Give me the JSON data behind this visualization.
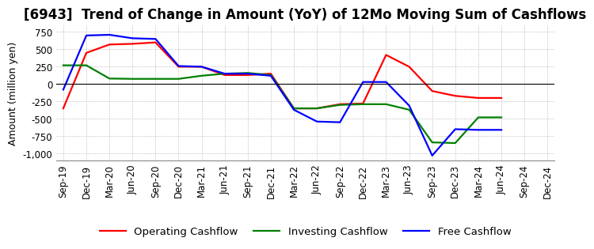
{
  "title": "[6943]  Trend of Change in Amount (YoY) of 12Mo Moving Sum of Cashflows",
  "ylabel": "Amount (million yen)",
  "x_labels": [
    "Sep-19",
    "Dec-19",
    "Mar-20",
    "Jun-20",
    "Sep-20",
    "Dec-20",
    "Mar-21",
    "Jun-21",
    "Sep-21",
    "Dec-21",
    "Mar-22",
    "Jun-22",
    "Sep-22",
    "Dec-22",
    "Mar-23",
    "Jun-23",
    "Sep-23",
    "Dec-23",
    "Mar-24",
    "Jun-24",
    "Sep-24",
    "Dec-24"
  ],
  "operating": [
    -350,
    450,
    570,
    580,
    600,
    250,
    250,
    130,
    130,
    150,
    -350,
    -350,
    -290,
    -280,
    420,
    250,
    -100,
    -170,
    -200,
    -200,
    null,
    null
  ],
  "investing": [
    270,
    270,
    80,
    75,
    75,
    75,
    120,
    150,
    160,
    130,
    -350,
    -350,
    -300,
    -290,
    -290,
    -370,
    -840,
    -850,
    -480,
    -480,
    null,
    null
  ],
  "free": [
    -80,
    700,
    710,
    660,
    650,
    260,
    250,
    150,
    150,
    120,
    -370,
    -540,
    -550,
    30,
    30,
    -310,
    -1030,
    -650,
    -660,
    -660,
    null,
    null
  ],
  "ylim": [
    -1100,
    850
  ],
  "yticks": [
    750,
    500,
    250,
    0,
    -250,
    -500,
    -750,
    -1000
  ],
  "legend_labels": [
    "Operating Cashflow",
    "Investing Cashflow",
    "Free Cashflow"
  ],
  "line_colors": [
    "red",
    "green",
    "blue"
  ],
  "grid_color": "#aaaaaa",
  "title_fontsize": 12,
  "axis_fontsize": 9,
  "tick_fontsize": 8.5
}
